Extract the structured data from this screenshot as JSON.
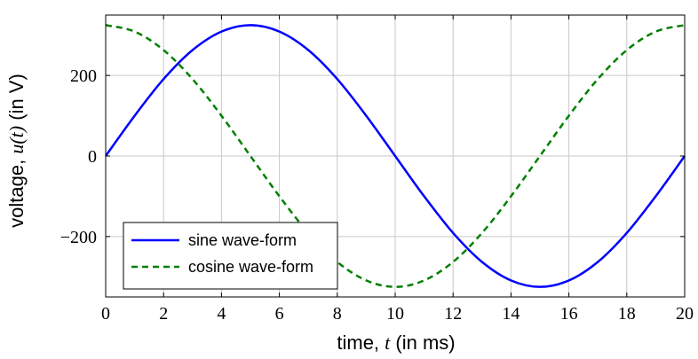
{
  "chart_data": {
    "type": "line",
    "title": "",
    "xlabel": {
      "prefix": "time, ",
      "math": "t",
      "suffix": " (in ms)"
    },
    "ylabel": {
      "prefix": "voltage, ",
      "math": "u(t)",
      "suffix": " (in V)"
    },
    "xlim": [
      0,
      20
    ],
    "ylim": [
      -350,
      350
    ],
    "xticks": [
      0,
      2,
      4,
      6,
      8,
      10,
      12,
      14,
      16,
      18,
      20
    ],
    "xtick_labels": [
      "0",
      "2",
      "4",
      "6",
      "8",
      "10",
      "12",
      "14",
      "16",
      "18",
      "20"
    ],
    "yticks": [
      -200,
      0,
      200
    ],
    "ytick_labels": [
      "−200",
      "0",
      "200"
    ],
    "grid": true,
    "legend_position": "bottom-left",
    "series": [
      {
        "name": "sine wave-form",
        "color": "#0000ff",
        "style": "solid",
        "x": [
          0,
          1,
          2,
          3,
          4,
          5,
          6,
          7,
          8,
          9,
          10,
          11,
          12,
          13,
          14,
          15,
          16,
          17,
          18,
          19,
          20
        ],
        "y": [
          0,
          100,
          191,
          263,
          309,
          325,
          309,
          263,
          191,
          100,
          0,
          -100,
          -191,
          -263,
          -309,
          -325,
          -309,
          -263,
          -191,
          -100,
          0
        ]
      },
      {
        "name": "cosine wave-form",
        "color": "#008000",
        "style": "dashed",
        "x": [
          0,
          1,
          2,
          3,
          4,
          5,
          6,
          7,
          8,
          9,
          10,
          11,
          12,
          13,
          14,
          15,
          16,
          17,
          18,
          19,
          20
        ],
        "y": [
          325,
          309,
          263,
          191,
          100,
          0,
          -100,
          -191,
          -263,
          -309,
          -325,
          -309,
          -263,
          -191,
          -100,
          0,
          100,
          191,
          263,
          309,
          325
        ]
      }
    ]
  }
}
